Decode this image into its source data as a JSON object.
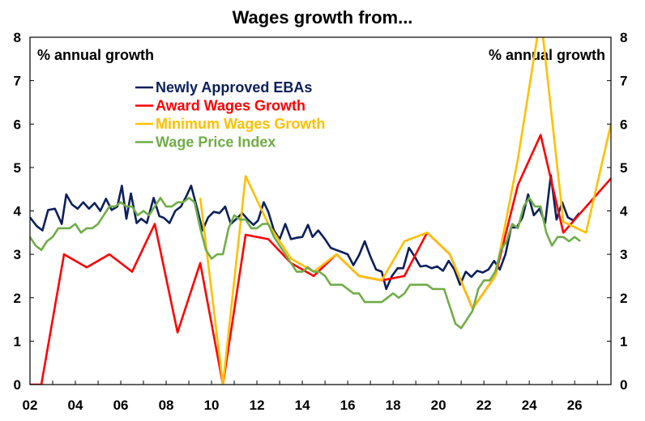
{
  "chart_data": {
    "type": "line",
    "title": "Wages growth from...",
    "left_unit_label": "% annual growth",
    "right_unit_label": "% annual growth",
    "x_tick_labels": [
      "02",
      "04",
      "06",
      "08",
      "10",
      "12",
      "14",
      "16",
      "18",
      "20",
      "22",
      "24",
      "26"
    ],
    "x_ticks": [
      2002,
      2004,
      2006,
      2008,
      2010,
      2012,
      2014,
      2016,
      2018,
      2020,
      2022,
      2024,
      2026
    ],
    "y_ticks": [
      0,
      1,
      2,
      3,
      4,
      5,
      6,
      7,
      8
    ],
    "xlim": [
      2002,
      2027.6
    ],
    "ylim": [
      0,
      8
    ],
    "grid": false,
    "legend_position": "upper-left",
    "series": [
      {
        "name": "Newly Approved EBAs",
        "color": "#0b1f5c",
        "points": [
          [
            2002.0,
            3.85
          ],
          [
            2002.3,
            3.65
          ],
          [
            2002.55,
            3.55
          ],
          [
            2002.8,
            4.02
          ],
          [
            2003.1,
            4.05
          ],
          [
            2003.4,
            3.7
          ],
          [
            2003.6,
            4.38
          ],
          [
            2003.85,
            4.15
          ],
          [
            2004.1,
            4.05
          ],
          [
            2004.35,
            4.2
          ],
          [
            2004.6,
            4.05
          ],
          [
            2004.85,
            4.18
          ],
          [
            2005.1,
            4.0
          ],
          [
            2005.35,
            4.28
          ],
          [
            2005.6,
            4.02
          ],
          [
            2005.85,
            4.1
          ],
          [
            2006.05,
            4.58
          ],
          [
            2006.25,
            3.82
          ],
          [
            2006.45,
            4.4
          ],
          [
            2006.7,
            3.72
          ],
          [
            2006.9,
            3.82
          ],
          [
            2007.15,
            3.72
          ],
          [
            2007.45,
            4.3
          ],
          [
            2007.7,
            3.88
          ],
          [
            2007.9,
            3.84
          ],
          [
            2008.15,
            3.72
          ],
          [
            2008.4,
            4.0
          ],
          [
            2008.65,
            4.1
          ],
          [
            2008.9,
            4.35
          ],
          [
            2009.1,
            4.58
          ],
          [
            2009.35,
            4.08
          ],
          [
            2009.6,
            3.55
          ],
          [
            2009.85,
            3.85
          ],
          [
            2010.1,
            3.98
          ],
          [
            2010.35,
            3.95
          ],
          [
            2010.6,
            4.1
          ],
          [
            2010.85,
            3.7
          ],
          [
            2011.1,
            3.82
          ],
          [
            2011.35,
            3.95
          ],
          [
            2011.6,
            3.8
          ],
          [
            2011.85,
            3.68
          ],
          [
            2012.05,
            3.78
          ],
          [
            2012.3,
            4.2
          ],
          [
            2012.5,
            3.98
          ],
          [
            2012.75,
            3.55
          ],
          [
            2013.0,
            3.35
          ],
          [
            2013.25,
            3.7
          ],
          [
            2013.5,
            3.35
          ],
          [
            2013.75,
            3.38
          ],
          [
            2014.0,
            3.4
          ],
          [
            2014.25,
            3.68
          ],
          [
            2014.45,
            3.4
          ],
          [
            2014.7,
            3.55
          ],
          [
            2015.0,
            3.35
          ],
          [
            2015.25,
            3.15
          ],
          [
            2015.5,
            3.1
          ],
          [
            2015.75,
            3.05
          ],
          [
            2016.0,
            3.0
          ],
          [
            2016.25,
            2.75
          ],
          [
            2016.5,
            2.98
          ],
          [
            2016.75,
            3.3
          ],
          [
            2017.0,
            2.95
          ],
          [
            2017.25,
            2.65
          ],
          [
            2017.5,
            2.6
          ],
          [
            2017.7,
            2.2
          ],
          [
            2017.95,
            2.5
          ],
          [
            2018.2,
            2.68
          ],
          [
            2018.45,
            2.68
          ],
          [
            2018.7,
            3.15
          ],
          [
            2018.95,
            2.95
          ],
          [
            2019.2,
            2.72
          ],
          [
            2019.45,
            2.74
          ],
          [
            2019.7,
            2.68
          ],
          [
            2019.95,
            2.72
          ],
          [
            2020.2,
            2.62
          ],
          [
            2020.45,
            2.85
          ],
          [
            2020.7,
            2.65
          ],
          [
            2020.95,
            2.3
          ],
          [
            2021.2,
            2.6
          ],
          [
            2021.45,
            2.48
          ],
          [
            2021.7,
            2.62
          ],
          [
            2021.95,
            2.58
          ],
          [
            2022.2,
            2.65
          ],
          [
            2022.45,
            2.85
          ],
          [
            2022.7,
            2.65
          ],
          [
            2022.95,
            3.0
          ],
          [
            2023.2,
            3.62
          ],
          [
            2023.45,
            3.62
          ],
          [
            2023.7,
            3.85
          ],
          [
            2023.95,
            4.38
          ],
          [
            2024.2,
            3.9
          ],
          [
            2024.45,
            4.05
          ],
          [
            2024.7,
            3.72
          ],
          [
            2024.95,
            4.82
          ],
          [
            2025.2,
            3.8
          ],
          [
            2025.45,
            4.2
          ],
          [
            2025.7,
            3.85
          ],
          [
            2025.95,
            3.78
          ],
          [
            2026.2,
            3.95
          ]
        ]
      },
      {
        "name": "Award Wages Growth",
        "color": "#ff0000",
        "points": [
          [
            2002.0,
            0
          ],
          [
            2002.5,
            0
          ],
          [
            2003.5,
            3.0
          ],
          [
            2004.5,
            2.7
          ],
          [
            2005.5,
            3.0
          ],
          [
            2006.5,
            2.6
          ],
          [
            2007.5,
            3.7
          ],
          [
            2008.5,
            1.2
          ],
          [
            2009.5,
            2.8
          ],
          [
            2010.5,
            0
          ],
          [
            2011.5,
            3.45
          ],
          [
            2012.5,
            3.35
          ],
          [
            2013.5,
            2.8
          ],
          [
            2014.5,
            2.5
          ],
          [
            2015.5,
            3.0
          ],
          [
            2016.5,
            2.5
          ],
          [
            2017.5,
            2.4
          ],
          [
            2018.5,
            2.5
          ],
          [
            2019.5,
            3.5
          ],
          [
            2020.5,
            3.0
          ],
          [
            2021.5,
            1.75
          ],
          [
            2022.5,
            2.5
          ],
          [
            2023.5,
            4.6
          ],
          [
            2024.5,
            5.75
          ],
          [
            2025.5,
            3.5
          ],
          [
            2027.6,
            4.75
          ]
        ]
      },
      {
        "name": "Minimum Wages Growth",
        "color": "#ffc000",
        "points": [
          [
            2009.5,
            4.3
          ],
          [
            2010.5,
            0
          ],
          [
            2011.5,
            4.8
          ],
          [
            2012.5,
            3.7
          ],
          [
            2013.5,
            2.9
          ],
          [
            2014.5,
            2.6
          ],
          [
            2015.5,
            3.0
          ],
          [
            2016.5,
            2.5
          ],
          [
            2017.5,
            2.4
          ],
          [
            2018.5,
            3.3
          ],
          [
            2019.5,
            3.5
          ],
          [
            2020.5,
            3.0
          ],
          [
            2021.5,
            1.75
          ],
          [
            2022.5,
            2.5
          ],
          [
            2023.5,
            5.2
          ],
          [
            2024.5,
            8.5
          ],
          [
            2025.5,
            3.75
          ],
          [
            2026.5,
            3.5
          ],
          [
            2027.6,
            6.0
          ]
        ]
      },
      {
        "name": "Wage Price Index",
        "color": "#70ad47",
        "points": [
          [
            2002.0,
            3.4
          ],
          [
            2002.25,
            3.2
          ],
          [
            2002.5,
            3.1
          ],
          [
            2002.75,
            3.3
          ],
          [
            2003.0,
            3.4
          ],
          [
            2003.25,
            3.6
          ],
          [
            2003.5,
            3.6
          ],
          [
            2003.75,
            3.6
          ],
          [
            2004.0,
            3.7
          ],
          [
            2004.25,
            3.5
          ],
          [
            2004.5,
            3.6
          ],
          [
            2004.75,
            3.6
          ],
          [
            2005.0,
            3.7
          ],
          [
            2005.25,
            3.9
          ],
          [
            2005.5,
            4.1
          ],
          [
            2005.75,
            4.1
          ],
          [
            2006.0,
            4.2
          ],
          [
            2006.25,
            4.1
          ],
          [
            2006.5,
            4.1
          ],
          [
            2006.75,
            3.9
          ],
          [
            2007.0,
            4.0
          ],
          [
            2007.25,
            3.9
          ],
          [
            2007.5,
            4.1
          ],
          [
            2007.75,
            4.3
          ],
          [
            2008.0,
            4.1
          ],
          [
            2008.25,
            4.1
          ],
          [
            2008.5,
            4.2
          ],
          [
            2008.75,
            4.2
          ],
          [
            2009.0,
            4.3
          ],
          [
            2009.25,
            4.2
          ],
          [
            2009.5,
            3.6
          ],
          [
            2009.75,
            3.1
          ],
          [
            2010.0,
            2.9
          ],
          [
            2010.25,
            3.0
          ],
          [
            2010.5,
            3.0
          ],
          [
            2010.75,
            3.6
          ],
          [
            2011.0,
            3.9
          ],
          [
            2011.25,
            3.8
          ],
          [
            2011.5,
            3.8
          ],
          [
            2011.75,
            3.6
          ],
          [
            2012.0,
            3.6
          ],
          [
            2012.25,
            3.7
          ],
          [
            2012.5,
            3.7
          ],
          [
            2012.75,
            3.4
          ],
          [
            2013.0,
            3.2
          ],
          [
            2013.25,
            3.0
          ],
          [
            2013.5,
            2.8
          ],
          [
            2013.75,
            2.6
          ],
          [
            2014.0,
            2.6
          ],
          [
            2014.25,
            2.7
          ],
          [
            2014.5,
            2.6
          ],
          [
            2014.75,
            2.6
          ],
          [
            2015.0,
            2.5
          ],
          [
            2015.25,
            2.3
          ],
          [
            2015.5,
            2.3
          ],
          [
            2015.75,
            2.3
          ],
          [
            2016.0,
            2.2
          ],
          [
            2016.25,
            2.1
          ],
          [
            2016.5,
            2.1
          ],
          [
            2016.75,
            1.9
          ],
          [
            2017.0,
            1.9
          ],
          [
            2017.25,
            1.9
          ],
          [
            2017.5,
            1.9
          ],
          [
            2017.75,
            2.0
          ],
          [
            2018.0,
            2.1
          ],
          [
            2018.25,
            2.0
          ],
          [
            2018.5,
            2.1
          ],
          [
            2018.75,
            2.3
          ],
          [
            2019.0,
            2.3
          ],
          [
            2019.25,
            2.3
          ],
          [
            2019.5,
            2.3
          ],
          [
            2019.75,
            2.2
          ],
          [
            2020.0,
            2.2
          ],
          [
            2020.25,
            2.2
          ],
          [
            2020.5,
            1.8
          ],
          [
            2020.75,
            1.4
          ],
          [
            2021.0,
            1.3
          ],
          [
            2021.25,
            1.5
          ],
          [
            2021.5,
            1.7
          ],
          [
            2021.75,
            2.2
          ],
          [
            2022.0,
            2.4
          ],
          [
            2022.25,
            2.4
          ],
          [
            2022.5,
            2.6
          ],
          [
            2022.75,
            3.1
          ],
          [
            2023.0,
            3.3
          ],
          [
            2023.25,
            3.7
          ],
          [
            2023.5,
            3.6
          ],
          [
            2023.75,
            4.1
          ],
          [
            2024.0,
            4.3
          ],
          [
            2024.25,
            4.1
          ],
          [
            2024.5,
            4.1
          ],
          [
            2024.75,
            3.5
          ],
          [
            2025.0,
            3.2
          ],
          [
            2025.25,
            3.4
          ],
          [
            2025.5,
            3.4
          ],
          [
            2025.75,
            3.3
          ],
          [
            2026.0,
            3.4
          ],
          [
            2026.25,
            3.3
          ]
        ]
      }
    ]
  }
}
